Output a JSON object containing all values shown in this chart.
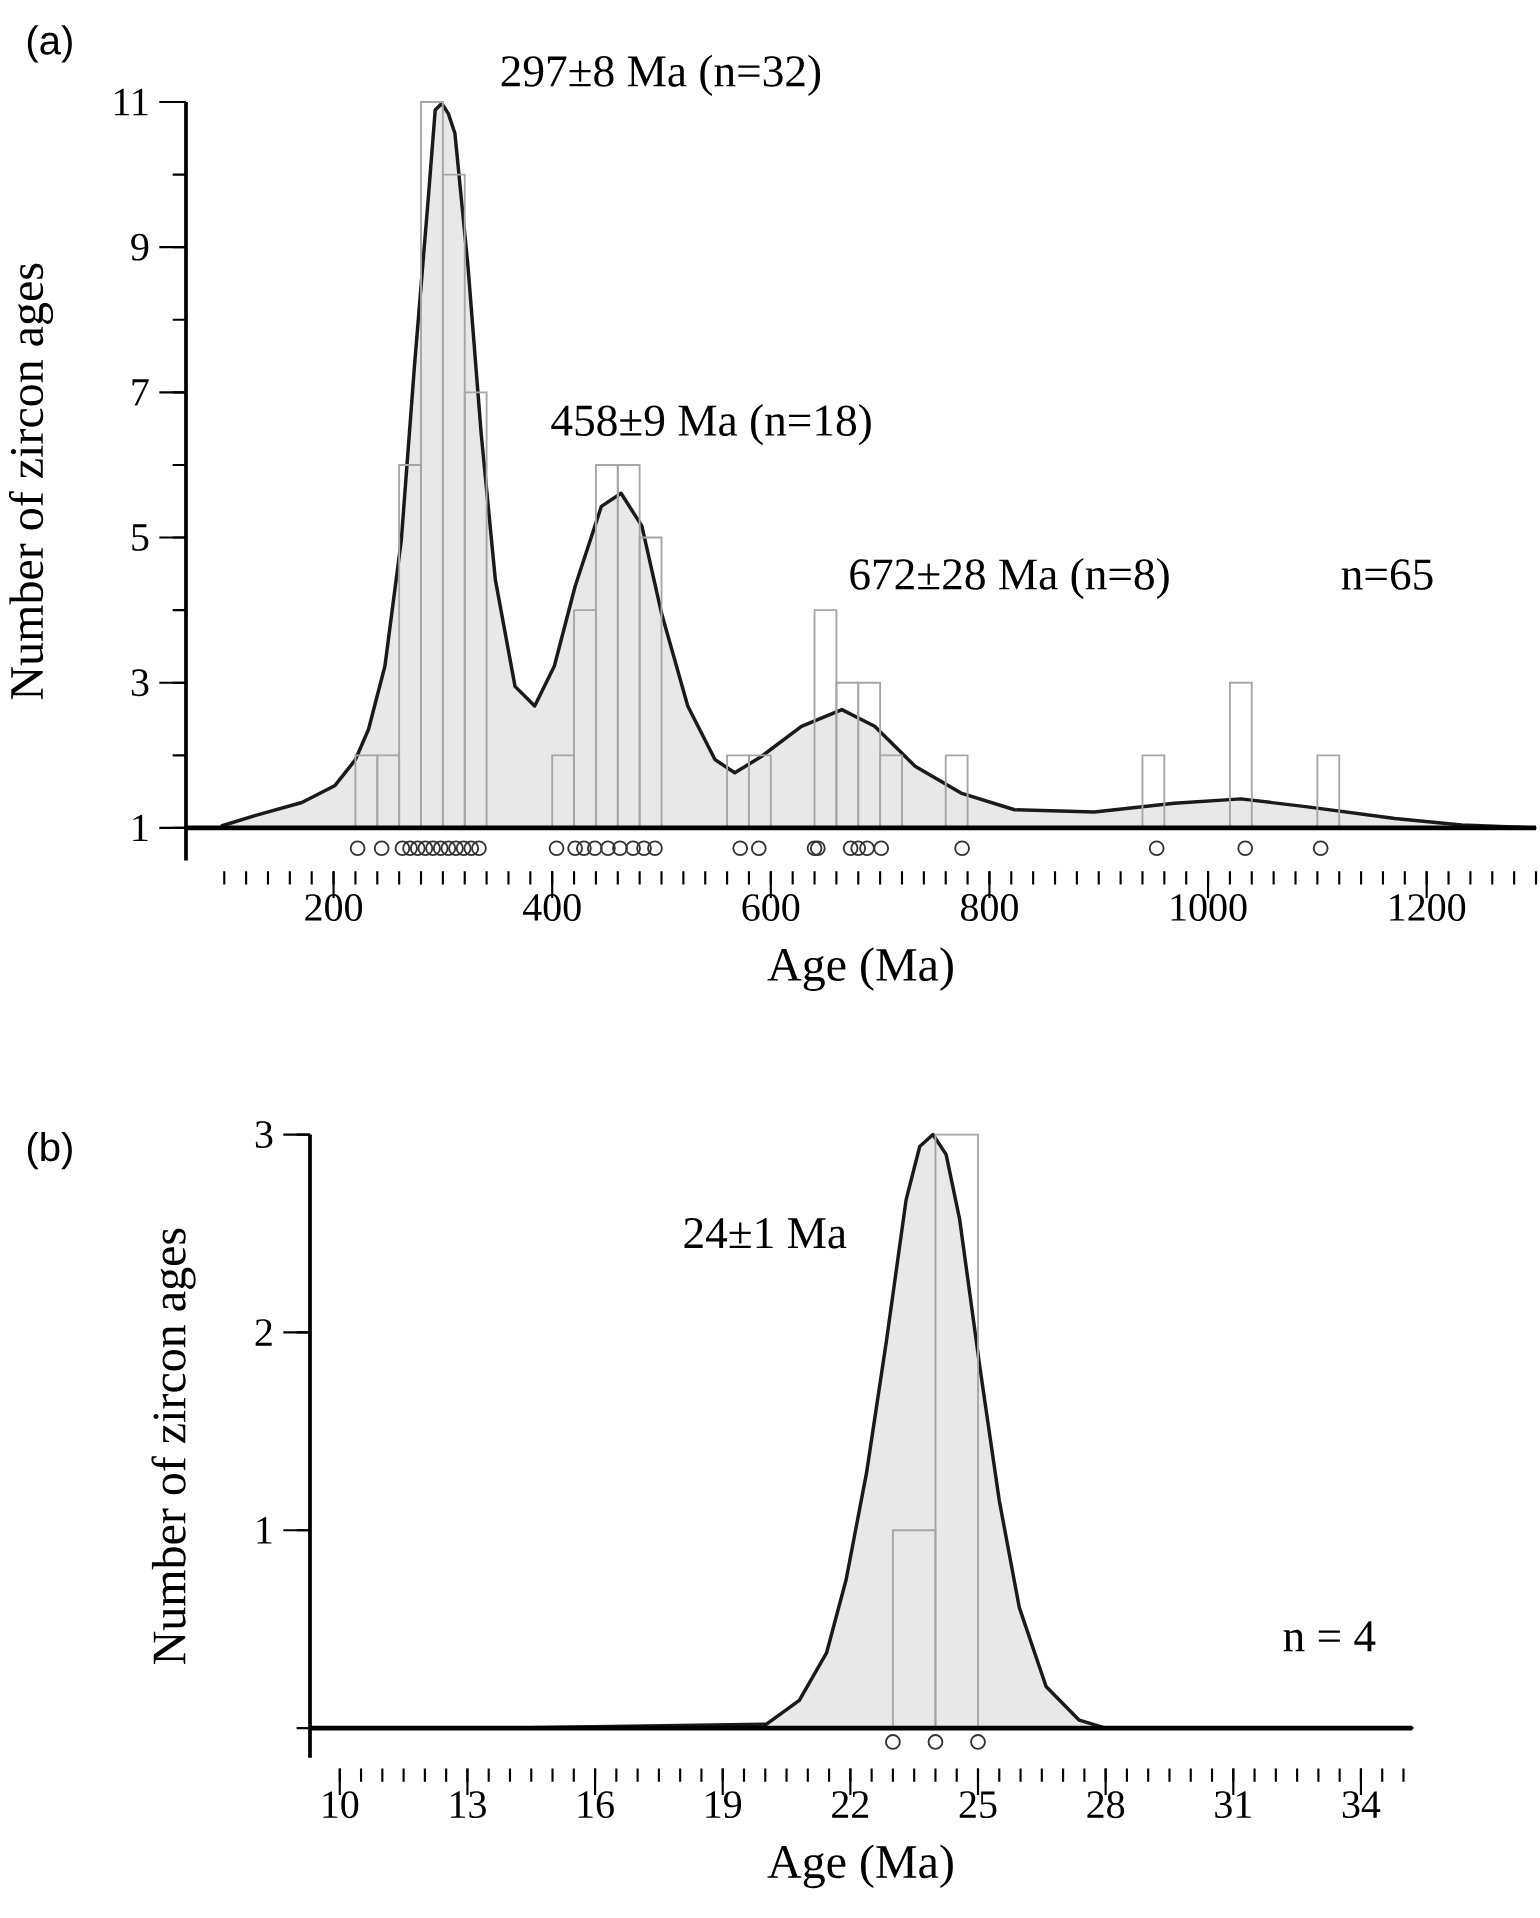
{
  "chart_data": [
    {
      "type": "histogram",
      "title": "(a)",
      "xlabel": "Age (Ma)",
      "ylabel": "Number of zircon ages",
      "xlim": [
        65,
        1300
      ],
      "ylim": [
        0.55,
        11
      ],
      "xticks": [
        {
          "value": 100,
          "label": null
        },
        {
          "value": 120,
          "label": null
        },
        {
          "value": 140,
          "label": null
        },
        {
          "value": 160,
          "label": null
        },
        {
          "value": 180,
          "label": null
        },
        200,
        {
          "value": 220,
          "label": null
        },
        {
          "value": 240,
          "label": null
        },
        {
          "value": 260,
          "label": null
        },
        {
          "value": 280,
          "label": null
        },
        {
          "value": 300,
          "label": null
        },
        {
          "value": 320,
          "label": null
        },
        {
          "value": 340,
          "label": null
        },
        {
          "value": 360,
          "label": null
        },
        {
          "value": 380,
          "label": null
        },
        400,
        {
          "value": 420,
          "label": null
        },
        {
          "value": 440,
          "label": null
        },
        {
          "value": 460,
          "label": null
        },
        {
          "value": 480,
          "label": null
        },
        {
          "value": 500,
          "label": null
        },
        {
          "value": 520,
          "label": null
        },
        {
          "value": 540,
          "label": null
        },
        {
          "value": 560,
          "label": null
        },
        {
          "value": 580,
          "label": null
        },
        600,
        {
          "value": 620,
          "label": null
        },
        {
          "value": 640,
          "label": null
        },
        {
          "value": 660,
          "label": null
        },
        {
          "value": 680,
          "label": null
        },
        {
          "value": 700,
          "label": null
        },
        {
          "value": 720,
          "label": null
        },
        {
          "value": 740,
          "label": null
        },
        {
          "value": 760,
          "label": null
        },
        {
          "value": 780,
          "label": null
        },
        800,
        {
          "value": 820,
          "label": null
        },
        {
          "value": 840,
          "label": null
        },
        {
          "value": 860,
          "label": null
        },
        {
          "value": 880,
          "label": null
        },
        {
          "value": 900,
          "label": null
        },
        {
          "value": 920,
          "label": null
        },
        {
          "value": 940,
          "label": null
        },
        {
          "value": 960,
          "label": null
        },
        {
          "value": 980,
          "label": null
        },
        1000,
        {
          "value": 1020,
          "label": null
        },
        {
          "value": 1040,
          "label": null
        },
        {
          "value": 1060,
          "label": null
        },
        {
          "value": 1080,
          "label": null
        },
        {
          "value": 1100,
          "label": null
        },
        {
          "value": 1120,
          "label": null
        },
        {
          "value": 1140,
          "label": null
        },
        {
          "value": 1160,
          "label": null
        },
        {
          "value": 1180,
          "label": null
        },
        1200,
        {
          "value": 1220,
          "label": null
        },
        {
          "value": 1240,
          "label": null
        },
        {
          "value": 1260,
          "label": null
        },
        {
          "value": 1280,
          "label": null
        },
        {
          "value": 1300,
          "label": null
        }
      ],
      "yticks": [
        1,
        {
          "value": 2,
          "label": null
        },
        3,
        {
          "value": 4,
          "label": null
        },
        5,
        {
          "value": 6,
          "label": null
        },
        7,
        {
          "value": 8,
          "label": null
        },
        9,
        {
          "value": 10,
          "label": null
        },
        11
      ],
      "series": [
        {
          "type": "area",
          "color": "#1a1a1a",
          "x": [
            98,
            128,
            171,
            201,
            220,
            232,
            247,
            262,
            274,
            287,
            293,
            299,
            305,
            311,
            323,
            335,
            348,
            366,
            384,
            402,
            421,
            445,
            463,
            482,
            500,
            524,
            549,
            567,
            591,
            628,
            665,
            695,
            732,
            774,
            823,
            896,
            969,
            1030,
            1091,
            1171,
            1232,
            1299
          ],
          "values": [
            1.03,
            1.17,
            1.35,
            1.58,
            1.94,
            2.36,
            3.23,
            4.97,
            7.36,
            9.74,
            10.89,
            10.98,
            10.84,
            10.57,
            8.73,
            6.44,
            4.42,
            2.95,
            2.68,
            3.23,
            4.33,
            5.43,
            5.61,
            5.16,
            3.96,
            2.68,
            1.94,
            1.76,
            1.98,
            2.4,
            2.63,
            2.4,
            1.85,
            1.48,
            1.25,
            1.22,
            1.34,
            1.4,
            1.29,
            1.13,
            1.04,
            1.0
          ]
        },
        {
          "type": "histogram",
          "color": "#a6a6a6",
          "bins": [
            220,
            240,
            260,
            280,
            300,
            320,
            340
          ],
          "values": [
            2,
            2,
            6,
            11,
            10,
            7
          ]
        },
        {
          "type": "histogram",
          "color": "#a6a6a6",
          "bins": [
            400,
            420,
            440,
            460,
            480,
            500
          ],
          "values": [
            2,
            4,
            6,
            6,
            5
          ]
        },
        {
          "type": "histogram",
          "color": "#a6a6a6",
          "bins": [
            560,
            580,
            600
          ],
          "values": [
            2,
            2
          ]
        },
        {
          "type": "histogram",
          "color": "#a6a6a6",
          "bins": [
            640,
            660,
            680,
            700,
            720
          ],
          "values": [
            4,
            3,
            3,
            2
          ]
        },
        {
          "type": "histogram",
          "color": "#a6a6a6",
          "bins": [
            760,
            780
          ],
          "values": [
            2
          ]
        },
        {
          "type": "histogram",
          "color": "#a6a6a6",
          "bins": [
            940,
            960
          ],
          "values": [
            2
          ]
        },
        {
          "type": "histogram",
          "color": "#a6a6a6",
          "bins": [
            1020,
            1040
          ],
          "values": [
            3
          ]
        },
        {
          "type": "histogram",
          "color": "#a6a6a6",
          "bins": [
            1100,
            1120
          ],
          "values": [
            2
          ]
        },
        {
          "type": "scatter",
          "color": "#333333",
          "marker": "circle",
          "x": [
            222,
            244,
            263,
            270,
            277,
            284,
            291,
            298,
            305,
            312,
            319,
            326,
            333,
            404,
            421,
            429,
            439,
            451,
            462,
            474,
            484,
            494,
            572,
            589,
            640,
            643,
            673,
            680,
            688,
            701,
            775,
            953,
            1034,
            1103
          ],
          "values": [
            0.72,
            0.72,
            0.72,
            0.72,
            0.72,
            0.72,
            0.72,
            0.72,
            0.72,
            0.72,
            0.72,
            0.72,
            0.72,
            0.72,
            0.72,
            0.72,
            0.72,
            0.72,
            0.72,
            0.72,
            0.72,
            0.72,
            0.72,
            0.72,
            0.72,
            0.72,
            0.72,
            0.72,
            0.72,
            0.72,
            0.72,
            0.72,
            0.72,
            0.72
          ]
        }
      ],
      "annotations": [
        {
          "text": "297±8 Ma (n=32)",
          "x": 297,
          "y": 11
        },
        {
          "text": "458±9 Ma (n=18)",
          "x": 458,
          "y": 5.6
        },
        {
          "text": "672±28 Ma (n=8)",
          "x": 672,
          "y": 2.6
        },
        "n=65"
      ]
    },
    {
      "type": "histogram",
      "title": "(b)",
      "xlabel": "Age (Ma)",
      "ylabel": "Number of zircon ages",
      "xlim": [
        9.3,
        35.2
      ],
      "ylim": [
        -0.15,
        3
      ],
      "xticks": [
        10,
        {
          "value": 10.5,
          "label": null
        },
        {
          "value": 11,
          "label": null
        },
        {
          "value": 11.5,
          "label": null
        },
        {
          "value": 12,
          "label": null
        },
        {
          "value": 12.5,
          "label": null
        },
        13,
        {
          "value": 13.5,
          "label": null
        },
        {
          "value": 14,
          "label": null
        },
        {
          "value": 14.5,
          "label": null
        },
        {
          "value": 15,
          "label": null
        },
        {
          "value": 15.5,
          "label": null
        },
        16,
        {
          "value": 16.5,
          "label": null
        },
        {
          "value": 17,
          "label": null
        },
        {
          "value": 17.5,
          "label": null
        },
        {
          "value": 18,
          "label": null
        },
        {
          "value": 18.5,
          "label": null
        },
        19,
        {
          "value": 19.5,
          "label": null
        },
        {
          "value": 20,
          "label": null
        },
        {
          "value": 20.5,
          "label": null
        },
        {
          "value": 21,
          "label": null
        },
        {
          "value": 21.5,
          "label": null
        },
        22,
        {
          "value": 22.5,
          "label": null
        },
        {
          "value": 23,
          "label": null
        },
        {
          "value": 23.5,
          "label": null
        },
        {
          "value": 24,
          "label": null
        },
        {
          "value": 24.5,
          "label": null
        },
        25,
        {
          "value": 25.5,
          "label": null
        },
        {
          "value": 26,
          "label": null
        },
        {
          "value": 26.5,
          "label": null
        },
        {
          "value": 27,
          "label": null
        },
        {
          "value": 27.5,
          "label": null
        },
        28,
        {
          "value": 28.5,
          "label": null
        },
        {
          "value": 29,
          "label": null
        },
        {
          "value": 29.5,
          "label": null
        },
        {
          "value": 30,
          "label": null
        },
        {
          "value": 30.5,
          "label": null
        },
        31,
        {
          "value": 31.5,
          "label": null
        },
        {
          "value": 32,
          "label": null
        },
        {
          "value": 32.5,
          "label": null
        },
        {
          "value": 33,
          "label": null
        },
        {
          "value": 33.5,
          "label": null
        },
        34,
        {
          "value": 34.5,
          "label": null
        },
        {
          "value": 35,
          "label": null
        }
      ],
      "yticks": [
        {
          "value": 0,
          "label": null
        },
        1,
        2,
        3
      ],
      "series": [
        {
          "type": "area",
          "color": "#1a1a1a",
          "x": [
            9.4,
            14,
            20.03,
            20.8,
            21.44,
            21.9,
            22.38,
            22.85,
            23.31,
            23.63,
            23.94,
            24.25,
            24.57,
            25.04,
            25.5,
            25.97,
            26.6,
            27.38,
            28.0,
            35.2
          ],
          "values": [
            0,
            0,
            0.02,
            0.14,
            0.38,
            0.75,
            1.29,
            1.96,
            2.67,
            2.94,
            3.0,
            2.9,
            2.57,
            1.83,
            1.15,
            0.61,
            0.21,
            0.04,
            0,
            0
          ]
        },
        {
          "type": "histogram",
          "color": "#a6a6a6",
          "bins": [
            23,
            24,
            25
          ],
          "values": [
            1,
            3
          ]
        },
        {
          "type": "scatter",
          "color": "#333333",
          "marker": "circle",
          "x": [
            23,
            24,
            25
          ],
          "values": [
            -0.07,
            -0.07,
            -0.07
          ]
        }
      ],
      "annotations": [
        {
          "text": "24±1 Ma",
          "x": 24,
          "y": 3
        },
        "n = 4"
      ]
    }
  ]
}
